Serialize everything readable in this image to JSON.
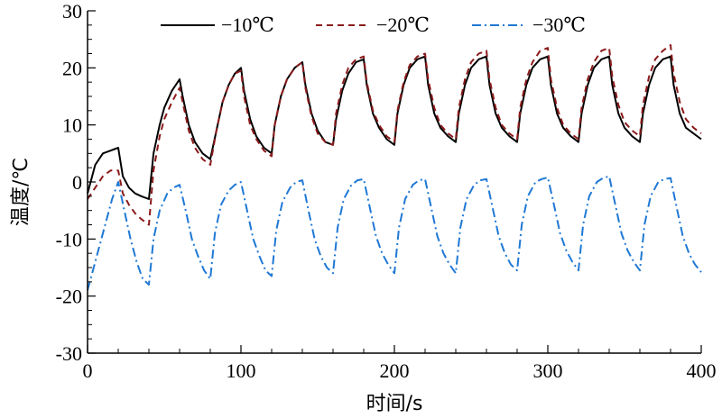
{
  "chart_data": {
    "type": "line",
    "title": "",
    "xlabel": "时间/s",
    "ylabel": "温度/℃",
    "xlim": [
      0,
      400
    ],
    "ylim": [
      -30,
      30
    ],
    "xticks": [
      0,
      100,
      200,
      300,
      400
    ],
    "yticks": [
      -30,
      -20,
      -10,
      0,
      10,
      20,
      30
    ],
    "grid": false,
    "legend_position": "top",
    "series": [
      {
        "name": "−10℃",
        "color": "#000000",
        "dash": "solid",
        "x": [
          0,
          5,
          10,
          15,
          20,
          23,
          27,
          31,
          35,
          40,
          43,
          47,
          50,
          55,
          60,
          62,
          66,
          70,
          75,
          80,
          84,
          88,
          92,
          96,
          100,
          102,
          106,
          110,
          115,
          120,
          122,
          126,
          130,
          135,
          140,
          142,
          146,
          150,
          155,
          160,
          162,
          166,
          170,
          175,
          180,
          182,
          186,
          190,
          195,
          200,
          202,
          206,
          210,
          215,
          220,
          222,
          226,
          230,
          235,
          240,
          242,
          246,
          250,
          255,
          260,
          262,
          266,
          270,
          275,
          280,
          282,
          286,
          290,
          295,
          300,
          302,
          306,
          310,
          315,
          320,
          322,
          326,
          330,
          335,
          340,
          342,
          346,
          350,
          355,
          360,
          362,
          366,
          370,
          375,
          380,
          382,
          386,
          390,
          395,
          400
        ],
        "values": [
          -2,
          3,
          5,
          5.5,
          6,
          1,
          -1,
          -2,
          -2.5,
          -3,
          5,
          10,
          13,
          16,
          18,
          15,
          10,
          7,
          5,
          4,
          9,
          14,
          17,
          19,
          20,
          16,
          11,
          8,
          6,
          5,
          10,
          15,
          18,
          20,
          21,
          17,
          12,
          9,
          7,
          6.5,
          11,
          16,
          19,
          21,
          21.5,
          17,
          12,
          9.5,
          7.5,
          6.5,
          12,
          17,
          20,
          21.5,
          22,
          17,
          12,
          9.5,
          8,
          7,
          12,
          17,
          20,
          21.5,
          22,
          17,
          12,
          9.5,
          8,
          7,
          12,
          17,
          20,
          21.5,
          22,
          17,
          12,
          9.5,
          8,
          7,
          12,
          17,
          20,
          21.5,
          22,
          17,
          12,
          9.5,
          8,
          7,
          12,
          17,
          20,
          21.5,
          22,
          17,
          12,
          9.5,
          8.5,
          7.5
        ]
      },
      {
        "name": "−20℃",
        "color": "#8b1a1a",
        "dash": "dashed",
        "x": [
          0,
          5,
          10,
          15,
          20,
          23,
          27,
          31,
          35,
          40,
          43,
          47,
          50,
          55,
          60,
          62,
          66,
          70,
          75,
          80,
          84,
          88,
          92,
          96,
          100,
          102,
          106,
          110,
          115,
          120,
          122,
          126,
          130,
          135,
          140,
          142,
          146,
          150,
          155,
          160,
          162,
          166,
          170,
          175,
          180,
          182,
          186,
          190,
          195,
          200,
          202,
          206,
          210,
          215,
          220,
          222,
          226,
          230,
          235,
          240,
          242,
          246,
          250,
          255,
          260,
          262,
          266,
          270,
          275,
          280,
          282,
          286,
          290,
          295,
          300,
          302,
          306,
          310,
          315,
          320,
          322,
          326,
          330,
          335,
          340,
          342,
          346,
          350,
          355,
          360,
          362,
          366,
          370,
          375,
          380,
          382,
          386,
          390,
          395,
          400
        ],
        "values": [
          -3,
          -1,
          1,
          2,
          2,
          -2,
          -4,
          -5.5,
          -6.5,
          -7.5,
          2,
          8,
          11,
          14,
          16.5,
          14,
          9,
          6,
          4,
          3,
          9,
          14,
          17,
          19,
          19.5,
          15,
          10,
          7.5,
          5.5,
          4.5,
          10,
          15,
          18,
          20,
          21,
          16.5,
          11.5,
          8.5,
          7,
          6.5,
          12,
          17,
          20,
          21.5,
          22,
          17.5,
          12.5,
          10,
          8,
          7,
          12.5,
          17.5,
          20.5,
          22,
          22.5,
          18,
          13,
          10,
          8.5,
          7.5,
          13,
          18,
          21,
          22.5,
          23,
          18,
          13,
          10,
          8.5,
          7.5,
          13,
          18,
          21,
          23,
          23.5,
          18,
          13,
          10,
          8.5,
          7.5,
          13,
          18,
          21,
          23,
          23.5,
          18.5,
          13.5,
          10.5,
          9,
          8,
          13.5,
          18.5,
          21.5,
          23,
          24,
          19,
          14,
          11,
          9.5,
          8.5
        ]
      },
      {
        "name": "−30℃",
        "color": "#1f78d4",
        "dash": "dashdot",
        "x": [
          0,
          4,
          8,
          12,
          16,
          20,
          24,
          28,
          32,
          36,
          40,
          43,
          47,
          52,
          56,
          60,
          64,
          68,
          72,
          76,
          80,
          83,
          87,
          92,
          96,
          100,
          104,
          108,
          112,
          116,
          120,
          123,
          127,
          132,
          136,
          140,
          144,
          148,
          152,
          156,
          160,
          163,
          167,
          172,
          176,
          180,
          184,
          188,
          192,
          196,
          200,
          203,
          207,
          212,
          216,
          220,
          224,
          228,
          232,
          236,
          240,
          243,
          247,
          252,
          256,
          260,
          264,
          268,
          272,
          276,
          280,
          283,
          287,
          292,
          296,
          300,
          304,
          308,
          312,
          316,
          320,
          323,
          327,
          332,
          336,
          340,
          344,
          348,
          352,
          356,
          360,
          363,
          367,
          372,
          376,
          380,
          384,
          388,
          392,
          396,
          400
        ],
        "values": [
          -19,
          -15,
          -11,
          -7,
          -3,
          0,
          -5,
          -10,
          -14,
          -17,
          -18,
          -10,
          -5,
          -2,
          -1,
          -0.5,
          -5,
          -10,
          -13,
          -15.5,
          -17,
          -9,
          -4,
          -1.5,
          -0.5,
          0,
          -5,
          -10,
          -13,
          -15.5,
          -16.5,
          -8.5,
          -3.5,
          -1,
          0,
          0.3,
          -5,
          -10,
          -13,
          -15,
          -16,
          -8,
          -3,
          -0.5,
          0.3,
          0.5,
          -4.5,
          -9.5,
          -12.5,
          -14.5,
          -16,
          -8,
          -3,
          -0.5,
          0.3,
          0.5,
          -4.5,
          -9.5,
          -12.5,
          -14.5,
          -16,
          -8,
          -3,
          -0.5,
          0.3,
          0.5,
          -4.5,
          -9.5,
          -12.5,
          -14.5,
          -15.5,
          -7.5,
          -2.5,
          0,
          0.5,
          0.8,
          -4,
          -9,
          -12,
          -14,
          -15.5,
          -7.5,
          -2.5,
          0,
          0.7,
          1,
          -4,
          -9,
          -12,
          -14,
          -15.5,
          -7.5,
          -2.5,
          0,
          0.5,
          0.7,
          -4.5,
          -9.5,
          -12.5,
          -14.5,
          -15.8
        ]
      }
    ]
  }
}
